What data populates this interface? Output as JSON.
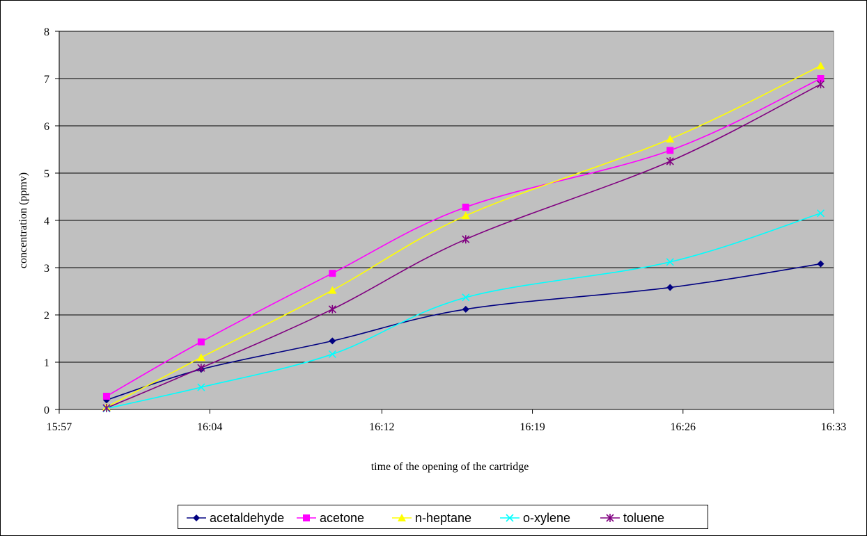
{
  "chart_data": {
    "type": "line",
    "title": "",
    "xlabel": "time of the opening of the cartridge",
    "ylabel": "concentration (ppmv)",
    "x_tick_labels": [
      "15:57",
      "16:04",
      "16:12",
      "16:19",
      "16:26",
      "16:33"
    ],
    "x_tick_minutes": [
      957,
      964,
      972,
      979,
      986,
      993
    ],
    "xlim_minutes": [
      957,
      993
    ],
    "y_ticks": [
      0,
      1,
      2,
      3,
      4,
      5,
      6,
      7,
      8
    ],
    "ylim": [
      0,
      8
    ],
    "grid": "horizontal",
    "legend_position": "bottom",
    "x_minutes": [
      959.2,
      963.6,
      969.7,
      975.9,
      985.4,
      992.4
    ],
    "x_labels": [
      "15:59",
      "16:03",
      "16:09",
      "16:15",
      "16:25",
      "16:32"
    ],
    "series": [
      {
        "name": "acetaldehyde",
        "color": "#000080",
        "marker": "diamond",
        "values": [
          0.2,
          0.85,
          1.45,
          2.12,
          2.58,
          3.08
        ]
      },
      {
        "name": "acetone",
        "color": "#FF00FF",
        "marker": "square",
        "values": [
          0.28,
          1.43,
          2.88,
          4.28,
          5.48,
          7.0
        ]
      },
      {
        "name": "n-heptane",
        "color": "#FFFF00",
        "marker": "triangle",
        "values": [
          0.05,
          1.1,
          2.52,
          4.1,
          5.72,
          7.27
        ]
      },
      {
        "name": "o-xylene",
        "color": "#00FFFF",
        "marker": "x",
        "values": [
          0.02,
          0.47,
          1.17,
          2.37,
          3.12,
          4.15
        ]
      },
      {
        "name": "toluene",
        "color": "#800080",
        "marker": "star",
        "values": [
          0.03,
          0.88,
          2.12,
          3.6,
          5.25,
          6.88
        ]
      }
    ]
  }
}
